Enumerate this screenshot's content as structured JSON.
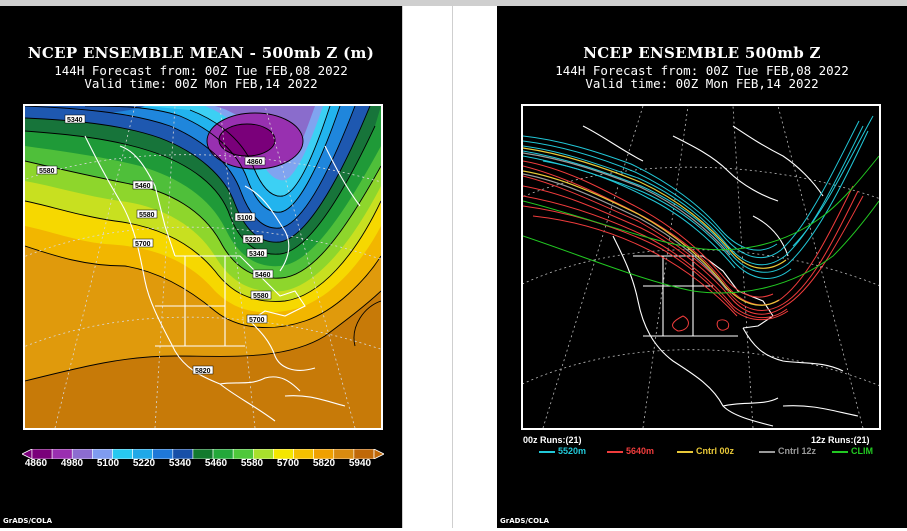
{
  "left_panel": {
    "title": "NCEP ENSEMBLE MEAN - 500mb Z (m)",
    "forecast_line": "144H Forecast from: 00Z Tue FEB,08 2022",
    "valid_line": "Valid time: 00Z Mon FEB,14 2022",
    "credit": "GrADS/COLA",
    "contour_labels": [
      "5340",
      "5580",
      "5460",
      "4860",
      "5100",
      "5580",
      "5700",
      "5220",
      "5340",
      "5460",
      "5580",
      "5700",
      "5820"
    ],
    "colorbar": {
      "labels": [
        "4860",
        "4980",
        "5100",
        "5220",
        "5340",
        "5460",
        "5580",
        "5700",
        "5820",
        "5940"
      ],
      "colors": [
        "#ffffff",
        "#7a007a",
        "#9a2fb0",
        "#8c6cd0",
        "#7f9cf0",
        "#27c8f0",
        "#1fa8e8",
        "#1f78d8",
        "#174fa8",
        "#127a2e",
        "#23a83a",
        "#4ec83a",
        "#a8e02c",
        "#f4e600",
        "#f4c000",
        "#f0a000",
        "#d88a10",
        "#c06808",
        "#ffffff"
      ]
    }
  },
  "right_panel": {
    "title": "NCEP ENSEMBLE 500mb Z",
    "forecast_line": "144H Forecast from: 00Z Tue FEB,08 2022",
    "valid_line": "Valid time: 00Z Mon FEB,14 2022",
    "credit": "GrADS/COLA",
    "runs_left": "00z Runs:(21)",
    "runs_right": "12z Runs:(21)",
    "legend": [
      {
        "label": "5520m",
        "color": "#22c8d8"
      },
      {
        "label": "5640m",
        "color": "#f03c3c"
      },
      {
        "label": "Cntrl 00z",
        "color": "#e8c838"
      },
      {
        "label": "Cntrl 12z",
        "color": "#9a9a9a"
      },
      {
        "label": "CLIM",
        "color": "#22c822"
      }
    ]
  }
}
